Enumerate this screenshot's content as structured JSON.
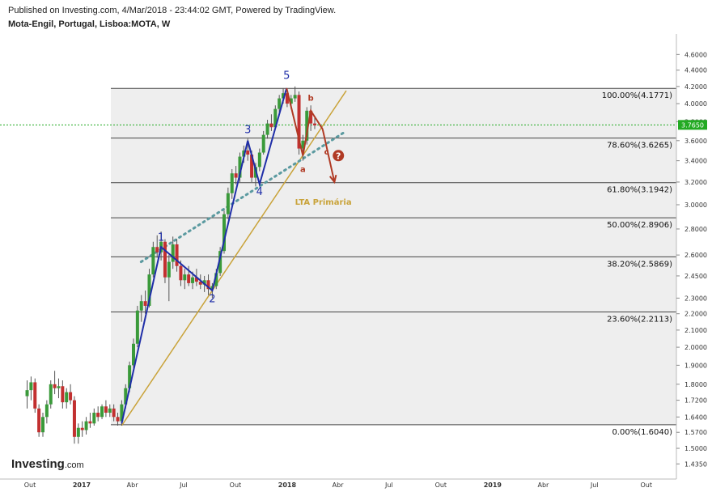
{
  "header": {
    "published": "Published on Investing.com, 4/Mar/2018 - 23:44:02 GMT, Powered by TradingView.",
    "symbol": "Mota-Engil, Portugal, Lisboa:MOTA, W"
  },
  "logo": {
    "main": "Investing",
    "domain": ".com"
  },
  "colors": {
    "impulse": "#1f2ea8",
    "correction": "#b03a24",
    "trendline": "#c9a33a",
    "dotted_trend": "#5b9aa0",
    "current_price": "#22aa22",
    "fib_zone": "#eeeeee",
    "candle_up": "#3a9a3a",
    "candle_down": "#c23030"
  },
  "chart_data": {
    "type": "candlestick",
    "interval": "W",
    "y_axis": {
      "scale": "log",
      "range": [
        1.4,
        4.7
      ],
      "ticks": [
        "4.6000",
        "4.4000",
        "4.2000",
        "4.0000",
        "3.8000",
        "3.6000",
        "3.4000",
        "3.2000",
        "3.0000",
        "2.8000",
        "2.6000",
        "2.4500",
        "2.3000",
        "2.2000",
        "2.1000",
        "2.0000",
        "1.9000",
        "1.8000",
        "1.7200",
        "1.6400",
        "1.5700",
        "1.5000",
        "1.4350"
      ],
      "current_price": "3.7650"
    },
    "x_axis": {
      "ticks": [
        "Out",
        "2017",
        "Abr",
        "Jul",
        "Out",
        "2018",
        "Abr",
        "Jul",
        "Out",
        "2019",
        "Abr",
        "Jul",
        "Out"
      ]
    },
    "fibonacci": [
      {
        "level": "100.00%",
        "value": 4.1771,
        "label": "100.00%(4.1771)"
      },
      {
        "level": "78.60%",
        "value": 3.6265,
        "label": "78.60%(3.6265)"
      },
      {
        "level": "61.80%",
        "value": 3.1942,
        "label": "61.80%(3.1942)"
      },
      {
        "level": "50.00%",
        "value": 2.8906,
        "label": "50.00%(2.8906)"
      },
      {
        "level": "38.20%",
        "value": 2.5869,
        "label": "38.20%(2.5869)"
      },
      {
        "level": "23.60%",
        "value": 2.2113,
        "label": "23.60%(2.2113)"
      },
      {
        "level": "0.00%",
        "value": 1.604,
        "label": "0.00%(1.6040)"
      }
    ],
    "wave_labels": [
      {
        "text": "1",
        "date": "2017-05-22",
        "price": 2.74,
        "kind": "impulse"
      },
      {
        "text": "2",
        "date": "2017-08-21",
        "price": 2.3,
        "kind": "impulse"
      },
      {
        "text": "3",
        "date": "2017-10-23",
        "price": 3.72,
        "kind": "impulse"
      },
      {
        "text": "4",
        "date": "2017-11-13",
        "price": 3.12,
        "kind": "impulse"
      },
      {
        "text": "5",
        "date": "2017-12-31",
        "price": 4.34,
        "kind": "impulse"
      },
      {
        "text": "a",
        "date": "2018-01-29",
        "price": 3.33,
        "kind": "correction"
      },
      {
        "text": "b",
        "date": "2018-02-12",
        "price": 4.08,
        "kind": "correction"
      },
      {
        "text": "c",
        "date": "2018-03-12",
        "price": 3.5,
        "kind": "correction"
      }
    ],
    "elliott_path": [
      {
        "date": "2017-03-13",
        "price": 1.61
      },
      {
        "date": "2017-05-22",
        "price": 2.66
      },
      {
        "date": "2017-08-21",
        "price": 2.35
      },
      {
        "date": "2017-10-23",
        "price": 3.6
      },
      {
        "date": "2017-11-13",
        "price": 3.18
      },
      {
        "date": "2017-12-31",
        "price": 4.18
      }
    ],
    "correction_path": [
      {
        "date": "2017-12-31",
        "price": 4.18
      },
      {
        "date": "2018-01-29",
        "price": 3.45
      },
      {
        "date": "2018-02-12",
        "price": 3.92
      },
      {
        "date": "2018-03-05",
        "price": 3.72
      }
    ],
    "projection_arrow": [
      {
        "date": "2018-03-05",
        "price": 3.72
      },
      {
        "date": "2018-03-26",
        "price": 3.2
      }
    ],
    "annotation": {
      "text": "LTA Primária",
      "date": "2018-01-15",
      "price": 3.0
    },
    "question_marker": {
      "text": "?",
      "date": "2018-04-02",
      "price": 3.45
    },
    "trendline": [
      {
        "date": "2017-03-13",
        "price": 1.6
      },
      {
        "date": "2018-04-16",
        "price": 4.15
      }
    ],
    "dotted_trendline": [
      {
        "date": "2017-03-13",
        "price": 2.55
      },
      {
        "date": "2018-04-16",
        "price": 3.7
      }
    ],
    "candles": [
      {
        "date": "2016-09-26",
        "o": 1.74,
        "h": 1.82,
        "l": 1.68,
        "c": 1.77
      },
      {
        "date": "2016-10-03",
        "o": 1.77,
        "h": 1.84,
        "l": 1.72,
        "c": 1.81
      },
      {
        "date": "2016-10-10",
        "o": 1.81,
        "h": 1.83,
        "l": 1.66,
        "c": 1.68
      },
      {
        "date": "2016-10-17",
        "o": 1.68,
        "h": 1.7,
        "l": 1.55,
        "c": 1.57
      },
      {
        "date": "2016-10-24",
        "o": 1.57,
        "h": 1.66,
        "l": 1.55,
        "c": 1.64
      },
      {
        "date": "2016-10-31",
        "o": 1.64,
        "h": 1.72,
        "l": 1.61,
        "c": 1.7
      },
      {
        "date": "2016-11-07",
        "o": 1.7,
        "h": 1.82,
        "l": 1.68,
        "c": 1.8
      },
      {
        "date": "2016-11-14",
        "o": 1.8,
        "h": 1.87,
        "l": 1.75,
        "c": 1.78
      },
      {
        "date": "2016-11-21",
        "o": 1.78,
        "h": 1.83,
        "l": 1.73,
        "c": 1.79
      },
      {
        "date": "2016-11-28",
        "o": 1.79,
        "h": 1.82,
        "l": 1.68,
        "c": 1.71
      },
      {
        "date": "2016-12-05",
        "o": 1.71,
        "h": 1.78,
        "l": 1.68,
        "c": 1.76
      },
      {
        "date": "2016-12-12",
        "o": 1.76,
        "h": 1.8,
        "l": 1.7,
        "c": 1.72
      },
      {
        "date": "2016-12-19",
        "o": 1.72,
        "h": 1.74,
        "l": 1.52,
        "c": 1.55
      },
      {
        "date": "2016-12-26",
        "o": 1.55,
        "h": 1.61,
        "l": 1.52,
        "c": 1.59
      },
      {
        "date": "2017-01-02",
        "o": 1.59,
        "h": 1.62,
        "l": 1.55,
        "c": 1.58
      },
      {
        "date": "2017-01-09",
        "o": 1.58,
        "h": 1.64,
        "l": 1.56,
        "c": 1.62
      },
      {
        "date": "2017-01-16",
        "o": 1.62,
        "h": 1.66,
        "l": 1.59,
        "c": 1.61
      },
      {
        "date": "2017-01-23",
        "o": 1.61,
        "h": 1.68,
        "l": 1.6,
        "c": 1.66
      },
      {
        "date": "2017-01-30",
        "o": 1.66,
        "h": 1.69,
        "l": 1.62,
        "c": 1.64
      },
      {
        "date": "2017-02-06",
        "o": 1.64,
        "h": 1.7,
        "l": 1.63,
        "c": 1.69
      },
      {
        "date": "2017-02-13",
        "o": 1.69,
        "h": 1.72,
        "l": 1.64,
        "c": 1.66
      },
      {
        "date": "2017-02-20",
        "o": 1.66,
        "h": 1.7,
        "l": 1.64,
        "c": 1.68
      },
      {
        "date": "2017-02-27",
        "o": 1.68,
        "h": 1.7,
        "l": 1.62,
        "c": 1.64
      },
      {
        "date": "2017-03-06",
        "o": 1.64,
        "h": 1.66,
        "l": 1.6,
        "c": 1.62
      },
      {
        "date": "2017-03-13",
        "o": 1.62,
        "h": 1.72,
        "l": 1.6,
        "c": 1.7
      },
      {
        "date": "2017-03-20",
        "o": 1.7,
        "h": 1.8,
        "l": 1.68,
        "c": 1.78
      },
      {
        "date": "2017-03-27",
        "o": 1.78,
        "h": 1.92,
        "l": 1.76,
        "c": 1.9
      },
      {
        "date": "2017-04-03",
        "o": 1.9,
        "h": 2.05,
        "l": 1.88,
        "c": 2.02
      },
      {
        "date": "2017-04-10",
        "o": 2.02,
        "h": 2.25,
        "l": 2.0,
        "c": 2.22
      },
      {
        "date": "2017-04-17",
        "o": 2.22,
        "h": 2.32,
        "l": 2.15,
        "c": 2.28
      },
      {
        "date": "2017-04-24",
        "o": 2.28,
        "h": 2.35,
        "l": 2.2,
        "c": 2.25
      },
      {
        "date": "2017-05-01",
        "o": 2.25,
        "h": 2.5,
        "l": 2.24,
        "c": 2.46
      },
      {
        "date": "2017-05-08",
        "o": 2.46,
        "h": 2.7,
        "l": 2.44,
        "c": 2.66
      },
      {
        "date": "2017-05-15",
        "o": 2.66,
        "h": 2.75,
        "l": 2.58,
        "c": 2.62
      },
      {
        "date": "2017-05-22",
        "o": 2.62,
        "h": 2.78,
        "l": 2.56,
        "c": 2.7
      },
      {
        "date": "2017-05-29",
        "o": 2.7,
        "h": 2.72,
        "l": 2.4,
        "c": 2.44
      },
      {
        "date": "2017-06-05",
        "o": 2.44,
        "h": 2.6,
        "l": 2.28,
        "c": 2.55
      },
      {
        "date": "2017-06-12",
        "o": 2.55,
        "h": 2.74,
        "l": 2.5,
        "c": 2.68
      },
      {
        "date": "2017-06-19",
        "o": 2.68,
        "h": 2.72,
        "l": 2.48,
        "c": 2.52
      },
      {
        "date": "2017-06-26",
        "o": 2.52,
        "h": 2.56,
        "l": 2.38,
        "c": 2.42
      },
      {
        "date": "2017-07-03",
        "o": 2.42,
        "h": 2.5,
        "l": 2.36,
        "c": 2.46
      },
      {
        "date": "2017-07-10",
        "o": 2.46,
        "h": 2.52,
        "l": 2.38,
        "c": 2.4
      },
      {
        "date": "2017-07-17",
        "o": 2.4,
        "h": 2.48,
        "l": 2.36,
        "c": 2.44
      },
      {
        "date": "2017-07-24",
        "o": 2.44,
        "h": 2.5,
        "l": 2.38,
        "c": 2.41
      },
      {
        "date": "2017-07-31",
        "o": 2.41,
        "h": 2.46,
        "l": 2.36,
        "c": 2.39
      },
      {
        "date": "2017-08-07",
        "o": 2.39,
        "h": 2.45,
        "l": 2.34,
        "c": 2.42
      },
      {
        "date": "2017-08-14",
        "o": 2.42,
        "h": 2.46,
        "l": 2.32,
        "c": 2.36
      },
      {
        "date": "2017-08-21",
        "o": 2.36,
        "h": 2.4,
        "l": 2.3,
        "c": 2.38
      },
      {
        "date": "2017-08-28",
        "o": 2.38,
        "h": 2.5,
        "l": 2.36,
        "c": 2.47
      },
      {
        "date": "2017-09-04",
        "o": 2.47,
        "h": 2.66,
        "l": 2.45,
        "c": 2.63
      },
      {
        "date": "2017-09-11",
        "o": 2.63,
        "h": 2.95,
        "l": 2.61,
        "c": 2.92
      },
      {
        "date": "2017-09-18",
        "o": 2.92,
        "h": 3.15,
        "l": 2.88,
        "c": 3.1
      },
      {
        "date": "2017-09-25",
        "o": 3.1,
        "h": 3.32,
        "l": 3.05,
        "c": 3.28
      },
      {
        "date": "2017-10-02",
        "o": 3.28,
        "h": 3.35,
        "l": 3.18,
        "c": 3.24
      },
      {
        "date": "2017-10-09",
        "o": 3.24,
        "h": 3.48,
        "l": 3.2,
        "c": 3.44
      },
      {
        "date": "2017-10-16",
        "o": 3.44,
        "h": 3.55,
        "l": 3.38,
        "c": 3.5
      },
      {
        "date": "2017-10-23",
        "o": 3.5,
        "h": 3.62,
        "l": 3.4,
        "c": 3.46
      },
      {
        "date": "2017-10-30",
        "o": 3.46,
        "h": 3.5,
        "l": 3.2,
        "c": 3.24
      },
      {
        "date": "2017-11-06",
        "o": 3.24,
        "h": 3.38,
        "l": 3.16,
        "c": 3.34
      },
      {
        "date": "2017-11-13",
        "o": 3.34,
        "h": 3.52,
        "l": 3.3,
        "c": 3.48
      },
      {
        "date": "2017-11-20",
        "o": 3.48,
        "h": 3.7,
        "l": 3.46,
        "c": 3.66
      },
      {
        "date": "2017-11-27",
        "o": 3.66,
        "h": 3.82,
        "l": 3.62,
        "c": 3.78
      },
      {
        "date": "2017-12-04",
        "o": 3.78,
        "h": 3.88,
        "l": 3.7,
        "c": 3.74
      },
      {
        "date": "2017-12-11",
        "o": 3.74,
        "h": 3.98,
        "l": 3.72,
        "c": 3.94
      },
      {
        "date": "2017-12-18",
        "o": 3.94,
        "h": 4.1,
        "l": 3.9,
        "c": 4.06
      },
      {
        "date": "2017-12-25",
        "o": 4.06,
        "h": 4.18,
        "l": 4.0,
        "c": 4.12
      },
      {
        "date": "2018-01-01",
        "o": 4.12,
        "h": 4.16,
        "l": 3.96,
        "c": 4.0
      },
      {
        "date": "2018-01-08",
        "o": 4.0,
        "h": 4.1,
        "l": 3.94,
        "c": 4.06
      },
      {
        "date": "2018-01-15",
        "o": 4.06,
        "h": 4.2,
        "l": 4.02,
        "c": 4.1
      },
      {
        "date": "2018-01-22",
        "o": 4.1,
        "h": 4.14,
        "l": 3.46,
        "c": 3.52
      },
      {
        "date": "2018-01-29",
        "o": 3.52,
        "h": 3.66,
        "l": 3.4,
        "c": 3.6
      },
      {
        "date": "2018-02-05",
        "o": 3.6,
        "h": 3.96,
        "l": 3.56,
        "c": 3.92
      },
      {
        "date": "2018-02-12",
        "o": 3.92,
        "h": 3.98,
        "l": 3.7,
        "c": 3.78
      },
      {
        "date": "2018-02-19",
        "o": 3.78,
        "h": 3.86,
        "l": 3.72,
        "c": 3.76
      }
    ]
  }
}
